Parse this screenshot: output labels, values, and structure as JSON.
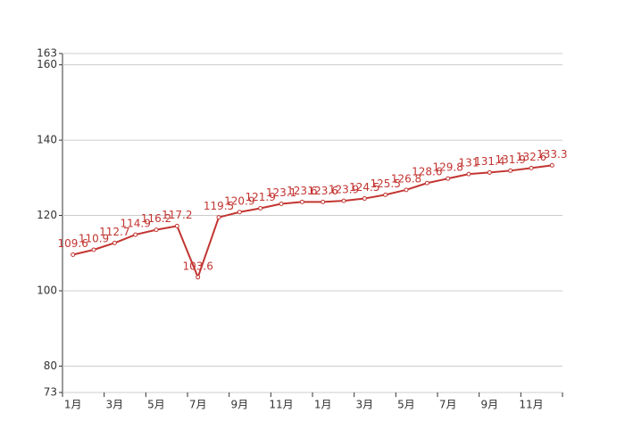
{
  "chart_data": {
    "type": "line",
    "categories": [
      "1月",
      null,
      "3月",
      null,
      "5月",
      null,
      "7月",
      null,
      "9月",
      null,
      "11月",
      null,
      "1月",
      null,
      "3月",
      null,
      "5月",
      null,
      "7月",
      null,
      "9月",
      null,
      "11月",
      null
    ],
    "values": [
      109.6,
      110.9,
      112.7,
      114.9,
      116.2,
      117.2,
      103.6,
      119.5,
      120.9,
      121.9,
      123.1,
      123.6,
      123.6,
      123.9,
      124.5,
      125.5,
      126.8,
      128.6,
      129.8,
      131,
      131.4,
      131.9,
      132.6,
      133.3
    ],
    "color": "#c23531",
    "ylim": [
      73,
      163
    ],
    "yticks": [
      73,
      80,
      100,
      120,
      140,
      160,
      163
    ],
    "grid": true
  }
}
